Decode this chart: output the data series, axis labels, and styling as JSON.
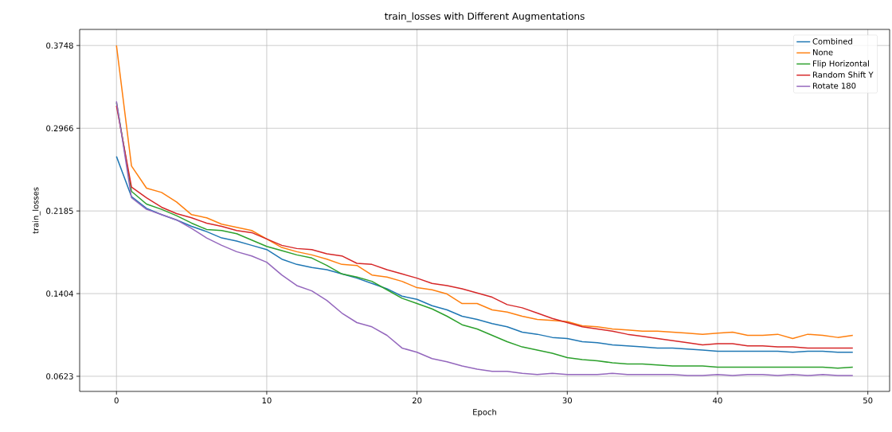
{
  "chart_data": {
    "type": "line",
    "title": "train_losses with Different Augmentations",
    "xlabel": "Epoch",
    "ylabel": "train_losses",
    "x": [
      0,
      1,
      2,
      3,
      4,
      5,
      6,
      7,
      8,
      9,
      10,
      11,
      12,
      13,
      14,
      15,
      16,
      17,
      18,
      19,
      20,
      21,
      22,
      23,
      24,
      25,
      26,
      27,
      28,
      29,
      30,
      31,
      32,
      33,
      34,
      35,
      36,
      37,
      38,
      39,
      40,
      41,
      42,
      43,
      44,
      45,
      46,
      47,
      48,
      49
    ],
    "series": [
      {
        "name": "Combined",
        "color": "#1f77b4",
        "values": [
          0.27,
          0.232,
          0.221,
          0.215,
          0.21,
          0.204,
          0.199,
          0.193,
          0.19,
          0.186,
          0.182,
          0.173,
          0.168,
          0.165,
          0.163,
          0.159,
          0.155,
          0.15,
          0.145,
          0.138,
          0.135,
          0.129,
          0.125,
          0.119,
          0.116,
          0.112,
          0.109,
          0.104,
          0.102,
          0.099,
          0.098,
          0.095,
          0.094,
          0.092,
          0.091,
          0.09,
          0.089,
          0.089,
          0.088,
          0.087,
          0.086,
          0.086,
          0.086,
          0.086,
          0.086,
          0.085,
          0.086,
          0.086,
          0.085,
          0.085
        ]
      },
      {
        "name": "None",
        "color": "#ff7f0e",
        "values": [
          0.3748,
          0.261,
          0.24,
          0.236,
          0.227,
          0.215,
          0.212,
          0.206,
          0.203,
          0.2,
          0.192,
          0.184,
          0.18,
          0.177,
          0.173,
          0.168,
          0.167,
          0.158,
          0.156,
          0.152,
          0.146,
          0.144,
          0.14,
          0.131,
          0.131,
          0.125,
          0.123,
          0.119,
          0.116,
          0.115,
          0.114,
          0.11,
          0.109,
          0.107,
          0.106,
          0.105,
          0.105,
          0.104,
          0.103,
          0.102,
          0.103,
          0.104,
          0.101,
          0.101,
          0.102,
          0.098,
          0.102,
          0.101,
          0.099,
          0.101
        ]
      },
      {
        "name": "Flip Horizontal",
        "color": "#2ca02c",
        "values": [
          0.321,
          0.237,
          0.225,
          0.22,
          0.214,
          0.207,
          0.201,
          0.2,
          0.197,
          0.191,
          0.185,
          0.181,
          0.177,
          0.174,
          0.167,
          0.159,
          0.156,
          0.152,
          0.144,
          0.136,
          0.131,
          0.126,
          0.119,
          0.111,
          0.107,
          0.101,
          0.095,
          0.09,
          0.087,
          0.084,
          0.08,
          0.078,
          0.077,
          0.075,
          0.074,
          0.074,
          0.073,
          0.072,
          0.072,
          0.072,
          0.071,
          0.071,
          0.071,
          0.071,
          0.071,
          0.071,
          0.071,
          0.071,
          0.07,
          0.071
        ]
      },
      {
        "name": "Random Shift Y",
        "color": "#d62728",
        "values": [
          0.318,
          0.241,
          0.231,
          0.222,
          0.216,
          0.212,
          0.207,
          0.204,
          0.2,
          0.198,
          0.192,
          0.186,
          0.183,
          0.182,
          0.178,
          0.176,
          0.169,
          0.168,
          0.163,
          0.159,
          0.155,
          0.15,
          0.148,
          0.145,
          0.141,
          0.137,
          0.13,
          0.127,
          0.122,
          0.117,
          0.113,
          0.109,
          0.107,
          0.105,
          0.102,
          0.1,
          0.098,
          0.096,
          0.094,
          0.092,
          0.093,
          0.093,
          0.091,
          0.091,
          0.09,
          0.09,
          0.089,
          0.089,
          0.089,
          0.089
        ]
      },
      {
        "name": "Rotate 180",
        "color": "#9467bd",
        "values": [
          0.322,
          0.231,
          0.22,
          0.215,
          0.21,
          0.202,
          0.193,
          0.186,
          0.18,
          0.176,
          0.17,
          0.158,
          0.148,
          0.143,
          0.134,
          0.122,
          0.113,
          0.109,
          0.101,
          0.089,
          0.085,
          0.079,
          0.076,
          0.072,
          0.069,
          0.067,
          0.067,
          0.065,
          0.064,
          0.065,
          0.064,
          0.064,
          0.064,
          0.065,
          0.064,
          0.064,
          0.064,
          0.064,
          0.063,
          0.063,
          0.064,
          0.063,
          0.064,
          0.064,
          0.063,
          0.064,
          0.063,
          0.064,
          0.063,
          0.063
        ]
      }
    ],
    "xlim": [
      -2.45,
      51.45
    ],
    "ylim": [
      0.048,
      0.39
    ],
    "xticks": [
      0,
      10,
      20,
      30,
      40,
      50
    ],
    "yticks": [
      0.0623,
      0.1404,
      0.2185,
      0.2966,
      0.3748
    ],
    "grid": true,
    "legend": "top right",
    "marker": "none",
    "line_style": "solid"
  }
}
